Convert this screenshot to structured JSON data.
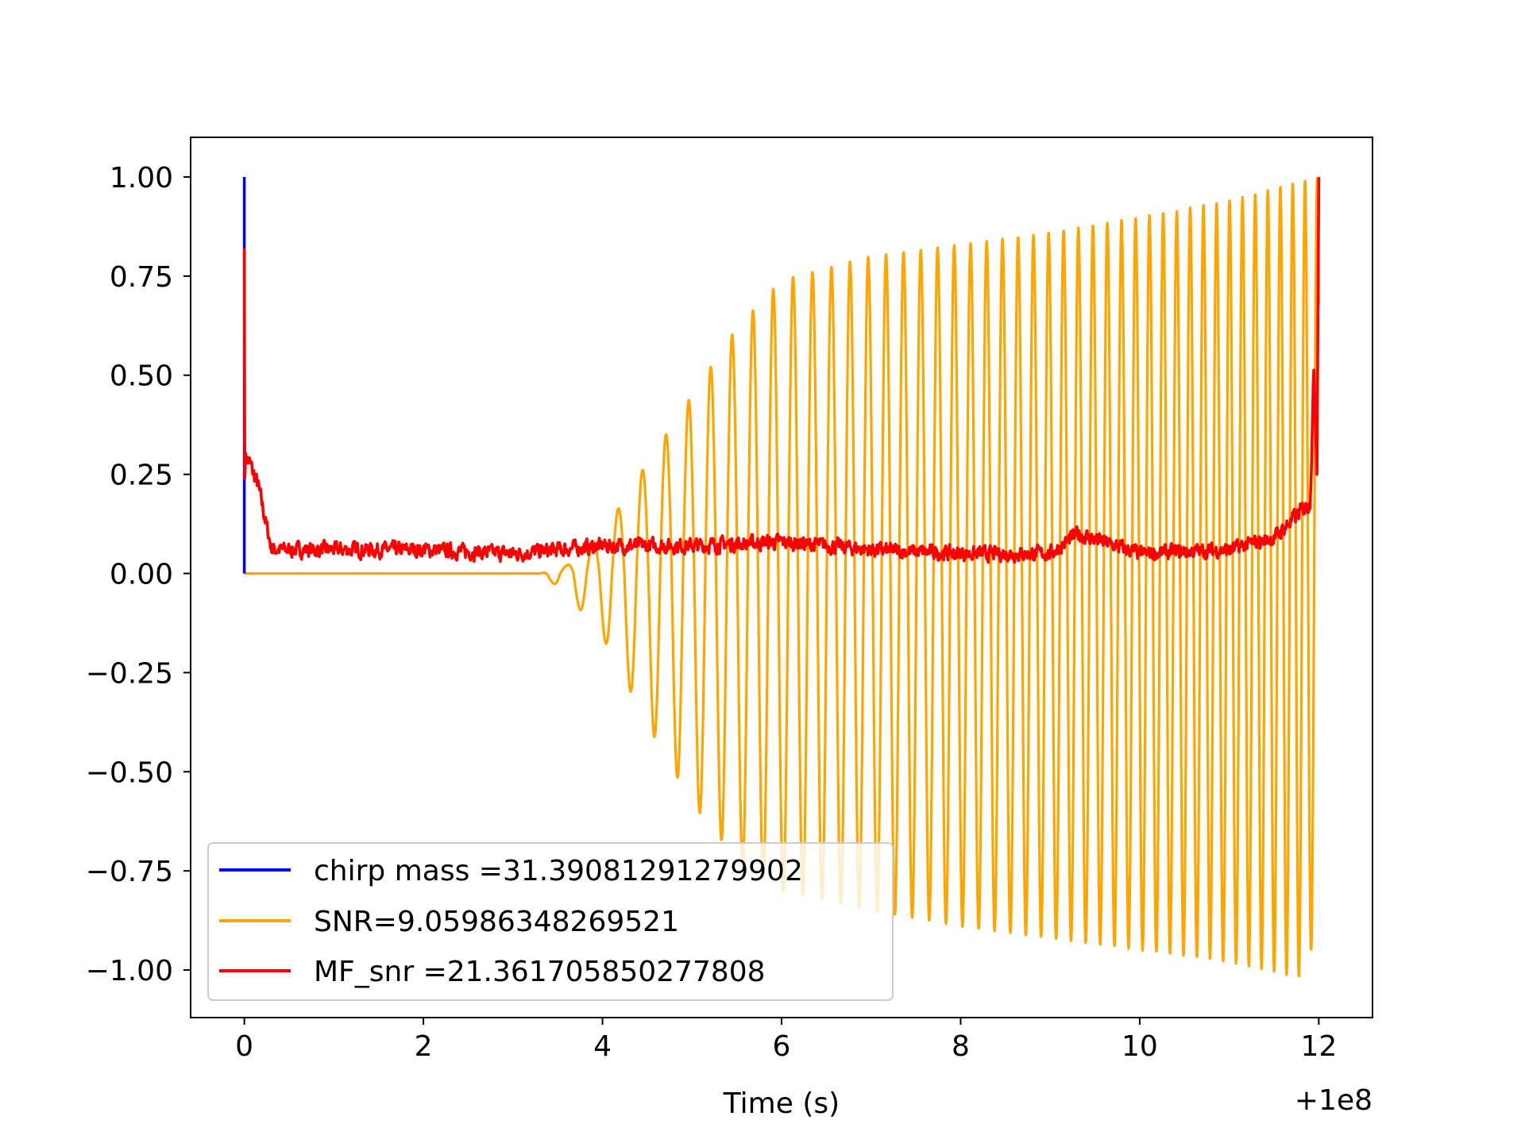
{
  "chart_data": {
    "type": "line",
    "title": "",
    "xlabel": "Time (s)",
    "ylabel": "",
    "x_offset_label": "+1e8",
    "xlim": [
      -0.6,
      12.6
    ],
    "ylim": [
      -1.12,
      1.1
    ],
    "x_ticks": [
      0,
      2,
      4,
      6,
      8,
      10,
      12
    ],
    "x_tick_labels": [
      "0",
      "2",
      "4",
      "6",
      "8",
      "10",
      "12"
    ],
    "y_ticks": [
      1.0,
      0.75,
      0.5,
      0.25,
      0.0,
      -0.25,
      -0.5,
      -0.75,
      -1.0
    ],
    "y_tick_labels": [
      "1.00",
      "0.75",
      "0.50",
      "0.25",
      "0.00",
      "−0.25",
      "−0.50",
      "−0.75",
      "−1.00"
    ],
    "grid": false,
    "legend_position": "lower-left",
    "series": [
      {
        "name": "chirp mass =31.39081291279902",
        "color": "#0000ff",
        "x": [
          0,
          0,
          0
        ],
        "y": [
          0,
          1.0,
          0
        ]
      },
      {
        "name": "SNR=9.05986348269521",
        "color": "#ffa500",
        "description_envelope": {
          "x": [
            0,
            3.3,
            3.6,
            4.0,
            4.5,
            5.0,
            5.5,
            6.0,
            7.0,
            8.0,
            9.0,
            10.0,
            11.0,
            11.8,
            12.0
          ],
          "upper": [
            0,
            0,
            0.02,
            0.1,
            0.28,
            0.45,
            0.62,
            0.74,
            0.8,
            0.83,
            0.86,
            0.9,
            0.94,
            0.99,
            1.0
          ],
          "lower": [
            0,
            0,
            -0.05,
            -0.16,
            -0.38,
            -0.58,
            -0.72,
            -0.8,
            -0.85,
            -0.89,
            -0.92,
            -0.95,
            -0.98,
            -1.02,
            -0.9
          ]
        }
      },
      {
        "name": "MF_snr =21.361705850277808",
        "color": "#ff0000",
        "description_profile": {
          "x": [
            0,
            0.01,
            0.05,
            0.15,
            0.3,
            1.0,
            2.0,
            3.0,
            3.5,
            4.0,
            5.0,
            6.0,
            7.0,
            8.0,
            9.0,
            9.3,
            10.0,
            11.0,
            11.5,
            11.9,
            12.0
          ],
          "mean": [
            0.82,
            0.3,
            0.28,
            0.22,
            0.06,
            0.06,
            0.06,
            0.05,
            0.06,
            0.07,
            0.07,
            0.08,
            0.06,
            0.05,
            0.05,
            0.1,
            0.05,
            0.06,
            0.09,
            0.18,
            1.0
          ]
        }
      }
    ]
  }
}
